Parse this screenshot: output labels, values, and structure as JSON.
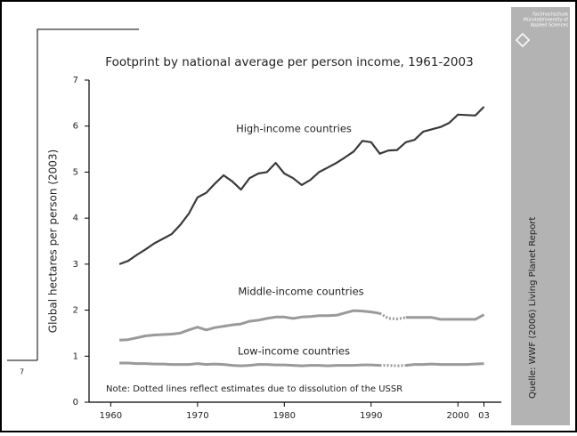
{
  "slide": {
    "number": "7",
    "logo": [
      "Fachhochschule",
      "Münster",
      "University of",
      "Applied Sciences"
    ],
    "source": "Quelle: WWF (2006) Living Planet Report"
  },
  "chart_data": {
    "type": "line",
    "title": "Footprint by national average per person income, 1961-2003",
    "y_label": "Global hectares per person (2003)",
    "note": "Note: Dotted lines reflect estimates due to dissolution of the USSR",
    "x": [
      1961,
      1962,
      1963,
      1964,
      1965,
      1966,
      1967,
      1968,
      1969,
      1970,
      1971,
      1972,
      1973,
      1974,
      1975,
      1976,
      1977,
      1978,
      1979,
      1980,
      1981,
      1982,
      1983,
      1984,
      1985,
      1986,
      1987,
      1988,
      1989,
      1990,
      1991,
      1992,
      1993,
      1994,
      1995,
      1996,
      1997,
      1998,
      1999,
      2000,
      2001,
      2002,
      2003
    ],
    "xlim": [
      1957.5,
      2005
    ],
    "xticks": [
      1960,
      1970,
      1980,
      1990,
      2000,
      {
        "value": 2003,
        "label": "03"
      }
    ],
    "ylim": [
      0,
      7
    ],
    "yticks": [
      0,
      1,
      2,
      3,
      4,
      5,
      6,
      7
    ],
    "series": [
      {
        "name": "High-income countries",
        "color": "#3a3a3a",
        "values": [
          3.0,
          3.07,
          3.2,
          3.32,
          3.45,
          3.55,
          3.65,
          3.85,
          4.1,
          4.45,
          4.55,
          4.75,
          4.93,
          4.8,
          4.62,
          4.87,
          4.97,
          5.0,
          5.2,
          4.97,
          4.87,
          4.72,
          4.83,
          5.0,
          5.1,
          5.2,
          5.32,
          5.45,
          5.68,
          5.65,
          5.4,
          5.47,
          5.48,
          5.65,
          5.7,
          5.88,
          5.93,
          5.98,
          6.07,
          6.25,
          6.24,
          6.23,
          6.42
        ]
      },
      {
        "name": "Middle-income countries",
        "color": "#9a9a9a",
        "estimated": [
          1991,
          1994
        ],
        "values": [
          1.35,
          1.36,
          1.4,
          1.44,
          1.46,
          1.47,
          1.48,
          1.5,
          1.57,
          1.63,
          1.57,
          1.62,
          1.65,
          1.68,
          1.7,
          1.76,
          1.78,
          1.82,
          1.85,
          1.85,
          1.82,
          1.85,
          1.86,
          1.88,
          1.88,
          1.89,
          1.94,
          1.99,
          1.98,
          1.96,
          1.93,
          1.82,
          1.81,
          1.84,
          1.84,
          1.84,
          1.84,
          1.8,
          1.8,
          1.8,
          1.8,
          1.8,
          1.9
        ]
      },
      {
        "name": "Low-income countries",
        "color": "#9a9a9a",
        "estimated": [
          1991,
          1994
        ],
        "values": [
          0.85,
          0.85,
          0.84,
          0.84,
          0.83,
          0.83,
          0.82,
          0.82,
          0.82,
          0.84,
          0.82,
          0.83,
          0.82,
          0.8,
          0.79,
          0.8,
          0.82,
          0.82,
          0.81,
          0.81,
          0.8,
          0.79,
          0.8,
          0.8,
          0.79,
          0.8,
          0.8,
          0.8,
          0.81,
          0.81,
          0.8,
          0.8,
          0.79,
          0.8,
          0.82,
          0.82,
          0.83,
          0.82,
          0.82,
          0.82,
          0.82,
          0.83,
          0.84
        ]
      }
    ]
  }
}
